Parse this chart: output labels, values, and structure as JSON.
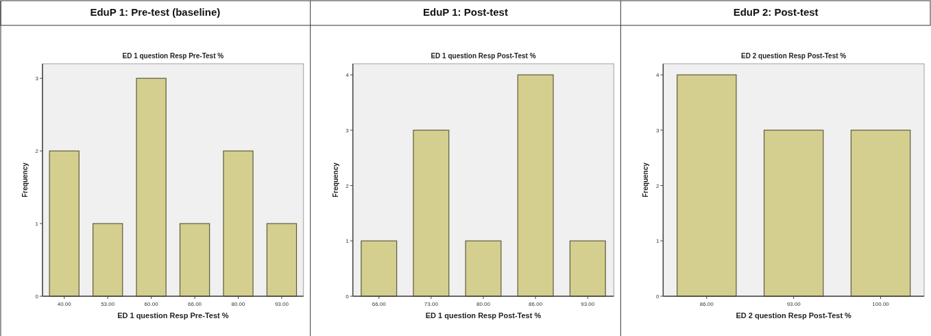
{
  "chart_data": [
    {
      "type": "bar",
      "title": "EduP 1: Pre-test (baseline)",
      "subtitle": "ED 1 question Resp Pre-Test %",
      "xlabel": "ED 1 question Resp Pre-Test %",
      "ylabel": "Frequency",
      "categories": [
        "40.00",
        "53.00",
        "60.00",
        "66.00",
        "80.00",
        "93.00"
      ],
      "values": [
        2,
        1,
        3,
        1,
        2,
        1
      ],
      "color": "#d4cf8e",
      "ylim": [
        0,
        3.2
      ],
      "yticks": [
        0,
        1,
        2,
        3
      ],
      "grid": false
    },
    {
      "type": "bar",
      "title": "EduP 1: Post-test",
      "subtitle": "ED 1 question Resp Post-Test %",
      "xlabel": "ED 1 question Resp Post-Test %",
      "ylabel": "Frequency",
      "categories": [
        "66.00",
        "73.00",
        "80.00",
        "86.00",
        "93.00"
      ],
      "values": [
        1,
        3,
        1,
        4,
        1
      ],
      "color": "#d4cf8e",
      "ylim": [
        0,
        4.2
      ],
      "yticks": [
        0,
        1,
        2,
        3,
        4
      ],
      "grid": false
    },
    {
      "type": "bar",
      "title": "EduP 2: Post-test",
      "subtitle": "ED 2 question Resp Post-Test %",
      "xlabel": "ED 2 question Resp Post-Test %",
      "ylabel": "Frequency",
      "categories": [
        "86.00",
        "93.00",
        "100.00"
      ],
      "values": [
        4,
        3,
        3
      ],
      "color": "#d4cf8e",
      "ylim": [
        0,
        4.2
      ],
      "yticks": [
        0,
        1,
        2,
        3,
        4
      ],
      "grid": false
    }
  ]
}
